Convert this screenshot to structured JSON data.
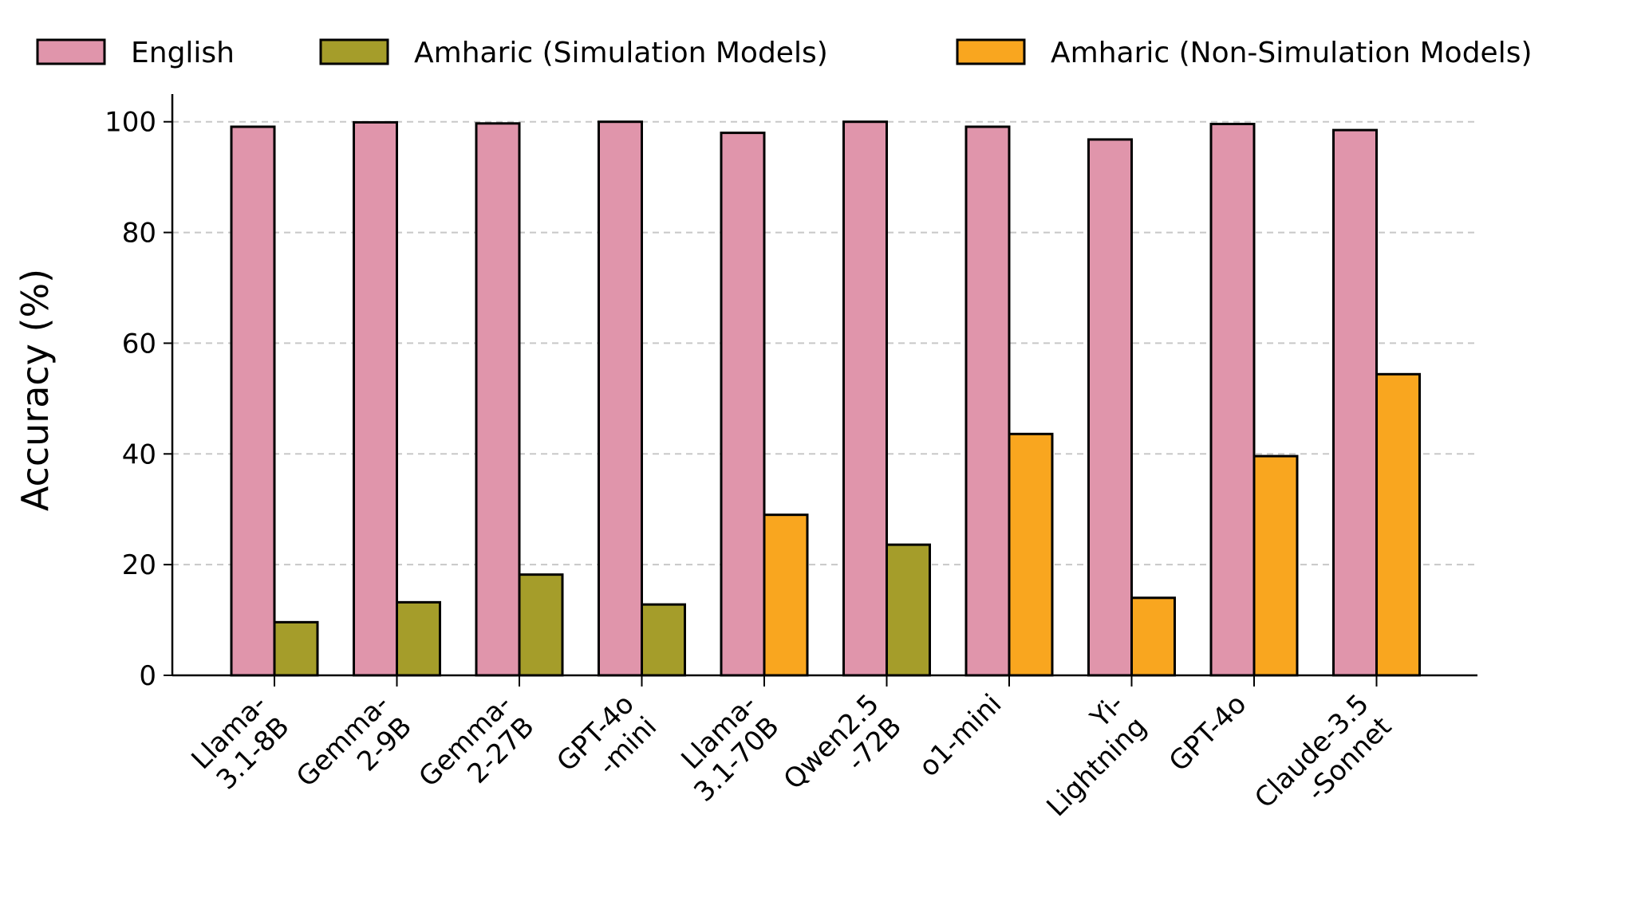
{
  "chart_data": {
    "type": "bar",
    "title": "",
    "xlabel": "",
    "ylabel": "Accuracy (%)",
    "ylim": [
      0,
      105
    ],
    "yticks": [
      0,
      20,
      40,
      60,
      80,
      100
    ],
    "grid": "horizontal-dashed",
    "legend_position": "top",
    "categories": [
      [
        "Llama-",
        "3.1-8B"
      ],
      [
        "Gemma-",
        "2-9B"
      ],
      [
        "Gemma-",
        "2-27B"
      ],
      [
        "GPT-4o",
        "-mini"
      ],
      [
        "Llama-",
        "3.1-70B"
      ],
      [
        "Qwen2.5",
        "-72B"
      ],
      [
        "o1-mini"
      ],
      [
        "Yi-",
        "Lightning"
      ],
      [
        "GPT-4o"
      ],
      [
        "Claude-3.5",
        "-Sonnet"
      ]
    ],
    "legend": [
      {
        "name": "English",
        "color": "#e095ab"
      },
      {
        "name": "Amharic (Simulation Models)",
        "color": "#a59d2a"
      },
      {
        "name": "Amharic (Non-Simulation Models)",
        "color": "#f9a61f"
      }
    ],
    "series": [
      {
        "name": "English",
        "color": "#e095ab",
        "values": [
          99.1,
          99.9,
          99.7,
          100.0,
          98.0,
          100.0,
          99.1,
          96.8,
          99.6,
          98.5
        ]
      },
      {
        "name": "Amharic",
        "values": [
          9.6,
          13.2,
          18.2,
          12.8,
          29.0,
          23.6,
          43.6,
          14.0,
          39.6,
          54.4
        ],
        "group": [
          "Amharic (Simulation Models)",
          "Amharic (Simulation Models)",
          "Amharic (Simulation Models)",
          "Amharic (Simulation Models)",
          "Amharic (Non-Simulation Models)",
          "Amharic (Simulation Models)",
          "Amharic (Non-Simulation Models)",
          "Amharic (Non-Simulation Models)",
          "Amharic (Non-Simulation Models)",
          "Amharic (Non-Simulation Models)"
        ]
      }
    ]
  }
}
